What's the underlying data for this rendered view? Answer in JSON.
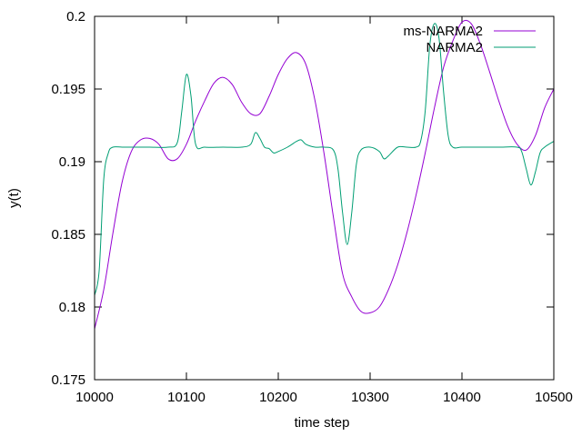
{
  "chart_data": {
    "type": "line",
    "title": "",
    "xlabel": "time step",
    "ylabel": "y(t)",
    "xlim": [
      10000,
      10500
    ],
    "ylim": [
      0.175,
      0.2
    ],
    "x_ticks": [
      "10000",
      "10100",
      "10200",
      "10300",
      "10400",
      "10500"
    ],
    "y_ticks": [
      "0.175",
      "0.18",
      "0.185",
      "0.19",
      "0.195",
      "0.2"
    ],
    "grid": false,
    "legend_position": "top-right",
    "series": [
      {
        "name": "ms-NARMA2",
        "color": "#9400d3",
        "x": [
          10000,
          10010,
          10020,
          10030,
          10040,
          10050,
          10060,
          10070,
          10080,
          10090,
          10100,
          10110,
          10120,
          10130,
          10140,
          10150,
          10160,
          10170,
          10180,
          10190,
          10200,
          10210,
          10220,
          10230,
          10240,
          10250,
          10260,
          10270,
          10280,
          10290,
          10300,
          10310,
          10320,
          10330,
          10340,
          10350,
          10360,
          10370,
          10380,
          10390,
          10400,
          10410,
          10420,
          10430,
          10440,
          10450,
          10460,
          10470,
          10480,
          10490,
          10500
        ],
        "values": [
          0.1785,
          0.1812,
          0.1851,
          0.1886,
          0.1907,
          0.1915,
          0.1916,
          0.1912,
          0.1902,
          0.1902,
          0.1912,
          0.1928,
          0.1942,
          0.1954,
          0.1958,
          0.1953,
          0.1941,
          0.1933,
          0.1933,
          0.1945,
          0.196,
          0.1971,
          0.1975,
          0.1967,
          0.1942,
          0.1905,
          0.1862,
          0.1823,
          0.1807,
          0.1797,
          0.1796,
          0.18,
          0.1812,
          0.1829,
          0.1851,
          0.1877,
          0.1906,
          0.1937,
          0.1965,
          0.1983,
          0.1996,
          0.1995,
          0.1981,
          0.1962,
          0.1942,
          0.1924,
          0.1912,
          0.1908,
          0.1918,
          0.1937,
          0.195
        ]
      },
      {
        "name": "NARMA2",
        "color": "#009e73",
        "x": [
          10000,
          10005,
          10010,
          10015,
          10020,
          10030,
          10040,
          10050,
          10060,
          10080,
          10090,
          10095,
          10100,
          10105,
          10110,
          10120,
          10140,
          10160,
          10170,
          10175,
          10180,
          10185,
          10190,
          10195,
          10200,
          10210,
          10220,
          10225,
          10230,
          10240,
          10250,
          10260,
          10265,
          10270,
          10275,
          10280,
          10285,
          10290,
          10300,
          10310,
          10315,
          10320,
          10330,
          10340,
          10350,
          10355,
          10360,
          10365,
          10370,
          10375,
          10380,
          10385,
          10390,
          10400,
          10420,
          10440,
          10460,
          10465,
          10470,
          10475,
          10480,
          10485,
          10490,
          10500
        ],
        "values": [
          0.1808,
          0.1825,
          0.1888,
          0.1906,
          0.191,
          0.191,
          0.191,
          0.191,
          0.191,
          0.191,
          0.1913,
          0.1935,
          0.196,
          0.1945,
          0.1912,
          0.191,
          0.191,
          0.191,
          0.1912,
          0.192,
          0.1916,
          0.191,
          0.1909,
          0.1906,
          0.1907,
          0.191,
          0.1914,
          0.1915,
          0.1912,
          0.191,
          0.191,
          0.1908,
          0.1895,
          0.1865,
          0.1843,
          0.1865,
          0.1898,
          0.1908,
          0.191,
          0.1907,
          0.1902,
          0.1904,
          0.191,
          0.191,
          0.191,
          0.1914,
          0.1935,
          0.198,
          0.1995,
          0.1985,
          0.1948,
          0.1918,
          0.191,
          0.191,
          0.191,
          0.191,
          0.191,
          0.1907,
          0.1895,
          0.1884,
          0.1893,
          0.1906,
          0.191,
          0.1914
        ]
      }
    ]
  }
}
